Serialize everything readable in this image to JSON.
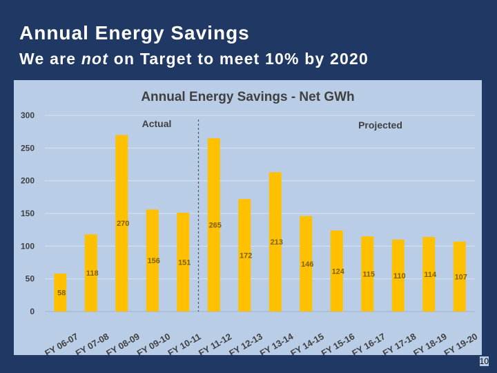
{
  "slide": {
    "title": "Annual Energy Savings",
    "subtitle_pre": "We are ",
    "subtitle_em": "not",
    "subtitle_post": " on Target to meet 10% by 2020",
    "page_number": "10"
  },
  "colors": {
    "background": "#1f3864",
    "panel": "#b9cde6",
    "bar": "#ffc000",
    "chart_title": "#404040",
    "label": "#404040",
    "bar_label": "#7f6000"
  },
  "chart_data": {
    "type": "bar",
    "title": "Annual Energy Savings - Net GWh",
    "xlabel": "",
    "ylabel": "",
    "ylim": [
      0,
      300
    ],
    "yticks": [
      0,
      50,
      100,
      150,
      200,
      250,
      300
    ],
    "grid": true,
    "categories": [
      "FY 06-07",
      "FY 07-08",
      "FY 08-09",
      "FY 09-10",
      "FY 10-11",
      "FY 11-12",
      "FY 12-13",
      "FY 13-14",
      "FY 14-15",
      "FY 15-16",
      "FY 16-17",
      "FY 17-18",
      "FY 18-19",
      "FY 19-20"
    ],
    "values": [
      58,
      118,
      270,
      156,
      151,
      265,
      172,
      213,
      146,
      124,
      115,
      110,
      114,
      107
    ],
    "annotations": {
      "actual": "Actual",
      "projected": "Projected",
      "divider_between": [
        "FY 10-11",
        "FY 11-12"
      ]
    }
  }
}
